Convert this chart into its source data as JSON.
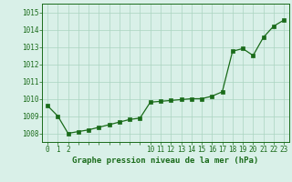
{
  "x": [
    0,
    1,
    2,
    3,
    4,
    5,
    6,
    7,
    8,
    9,
    10,
    11,
    12,
    13,
    14,
    15,
    16,
    17,
    18,
    19,
    20,
    21,
    22,
    23
  ],
  "y": [
    1009.6,
    1009.0,
    1008.0,
    1008.1,
    1008.2,
    1008.35,
    1008.5,
    1008.65,
    1008.8,
    1008.88,
    1009.8,
    1009.85,
    1009.9,
    1009.95,
    1010.0,
    1010.0,
    1010.15,
    1010.4,
    1012.75,
    1012.9,
    1012.5,
    1013.55,
    1014.2,
    1014.55
  ],
  "line_color": "#1a6b1a",
  "marker": "s",
  "marker_size": 2.5,
  "bg_color": "#d9f0e8",
  "grid_color": "#aad4c0",
  "ylim": [
    1007.5,
    1015.5
  ],
  "yticks": [
    1008,
    1009,
    1010,
    1011,
    1012,
    1013,
    1014,
    1015
  ],
  "xtick_visible": [
    0,
    1,
    2,
    10,
    11,
    12,
    13,
    14,
    15,
    16,
    17,
    18,
    19,
    20,
    21,
    22,
    23
  ],
  "xlabel": "Graphe pression niveau de la mer (hPa)",
  "xlabel_color": "#1a6b1a",
  "tick_color": "#1a6b1a",
  "axis_color": "#1a6b1a",
  "tick_fontsize": 5.5,
  "xlabel_fontsize": 6.5
}
